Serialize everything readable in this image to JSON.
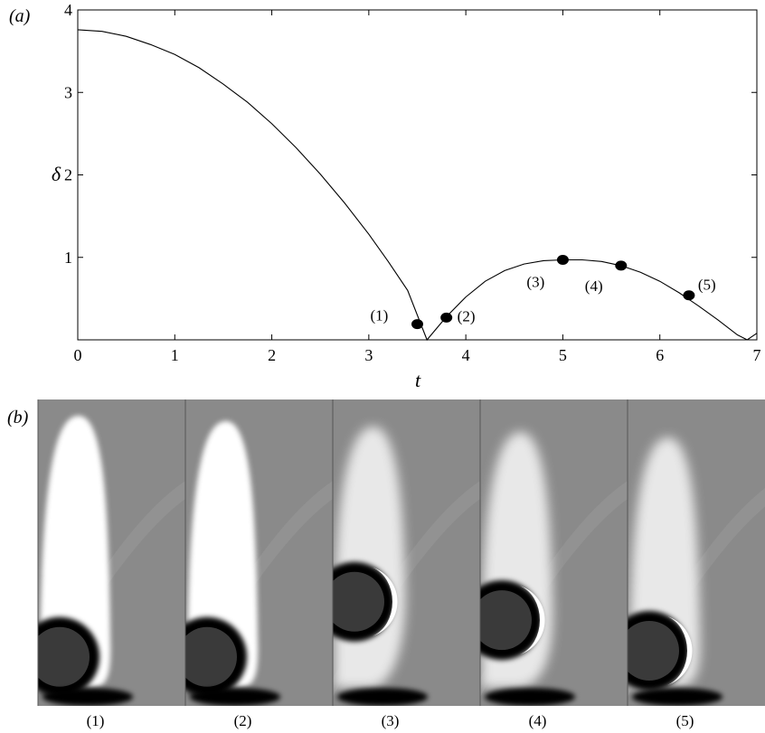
{
  "chart_data": {
    "type": "line",
    "panel_label": "(a)",
    "xlabel": "t",
    "ylabel": "δ",
    "xlim": [
      0,
      7
    ],
    "ylim": [
      0,
      4
    ],
    "x_ticks": [
      "0",
      "1",
      "2",
      "3",
      "4",
      "5",
      "6",
      "7"
    ],
    "y_ticks": [
      "1",
      "2",
      "3",
      "4"
    ],
    "grid": false,
    "series": [
      {
        "x": [
          0,
          0.25,
          0.5,
          0.75,
          1.0,
          1.25,
          1.5,
          1.75,
          2.0,
          2.25,
          2.5,
          2.75,
          3.0,
          3.2,
          3.4,
          3.6,
          3.8,
          4.0,
          4.2,
          4.4,
          4.6,
          4.8,
          5.0,
          5.2,
          5.4,
          5.6,
          5.8,
          6.0,
          6.2,
          6.4,
          6.6,
          6.8,
          6.9,
          7.0
        ],
        "y": [
          3.76,
          3.74,
          3.68,
          3.58,
          3.46,
          3.3,
          3.1,
          2.88,
          2.62,
          2.33,
          2.01,
          1.66,
          1.28,
          0.95,
          0.6,
          0.0,
          0.28,
          0.52,
          0.71,
          0.84,
          0.92,
          0.96,
          0.97,
          0.97,
          0.95,
          0.9,
          0.82,
          0.71,
          0.57,
          0.41,
          0.24,
          0.06,
          0.0,
          0.08
        ]
      }
    ],
    "markers": [
      {
        "label": "(1)",
        "t": 3.5,
        "delta": 0.19
      },
      {
        "label": "(2)",
        "t": 3.8,
        "delta": 0.27
      },
      {
        "label": "(3)",
        "t": 5.0,
        "delta": 0.97
      },
      {
        "label": "(4)",
        "t": 5.6,
        "delta": 0.9
      },
      {
        "label": "(5)",
        "t": 6.3,
        "delta": 0.54
      }
    ]
  },
  "panel_b": {
    "panel_label": "(b)",
    "frames": [
      {
        "label": "(1)",
        "circle_y": 0.84,
        "crescent": false
      },
      {
        "label": "(2)",
        "circle_y": 0.84,
        "crescent": false
      },
      {
        "label": "(3)",
        "circle_y": 0.66,
        "crescent": true
      },
      {
        "label": "(4)",
        "circle_y": 0.72,
        "crescent": true
      },
      {
        "label": "(5)",
        "circle_y": 0.82,
        "crescent": true
      }
    ],
    "colors": {
      "background": "#8a8a8a",
      "light": "#ffffff",
      "dark": "#000000",
      "body": "#3a3a3a"
    }
  }
}
